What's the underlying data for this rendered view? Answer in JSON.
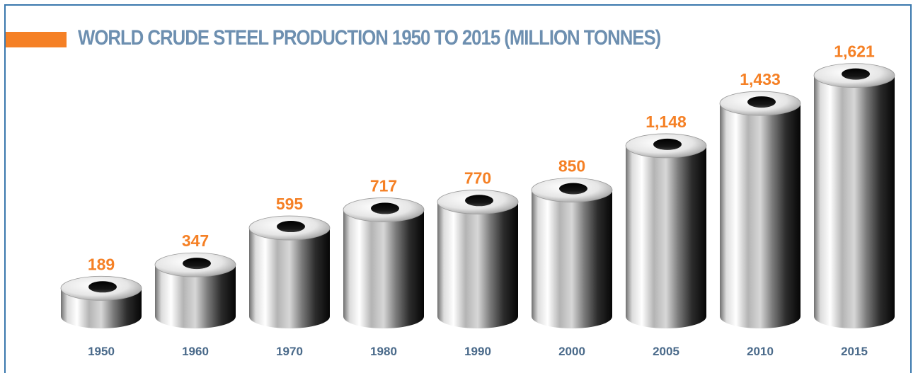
{
  "colors": {
    "accent": "#f58025",
    "title": "#6d8fb0",
    "frame": "#3a78ad",
    "year_label": "#4a6a8a"
  },
  "chart_data": {
    "type": "bar",
    "title": "WORLD CRUDE STEEL PRODUCTION 1950 TO 2015 (MILLION TONNES)",
    "categories": [
      "1950",
      "1960",
      "1970",
      "1980",
      "1990",
      "2000",
      "2005",
      "2010",
      "2015"
    ],
    "values": [
      189,
      347,
      595,
      717,
      770,
      850,
      1148,
      1433,
      1621
    ],
    "value_labels": [
      "189",
      "347",
      "595",
      "717",
      "770",
      "850",
      "1,148",
      "1,433",
      "1,621"
    ],
    "xlabel": "",
    "ylabel": "",
    "ylim": [
      0,
      1621
    ],
    "grid": false,
    "legend": "none",
    "mark_style": "steel-cylinder"
  }
}
